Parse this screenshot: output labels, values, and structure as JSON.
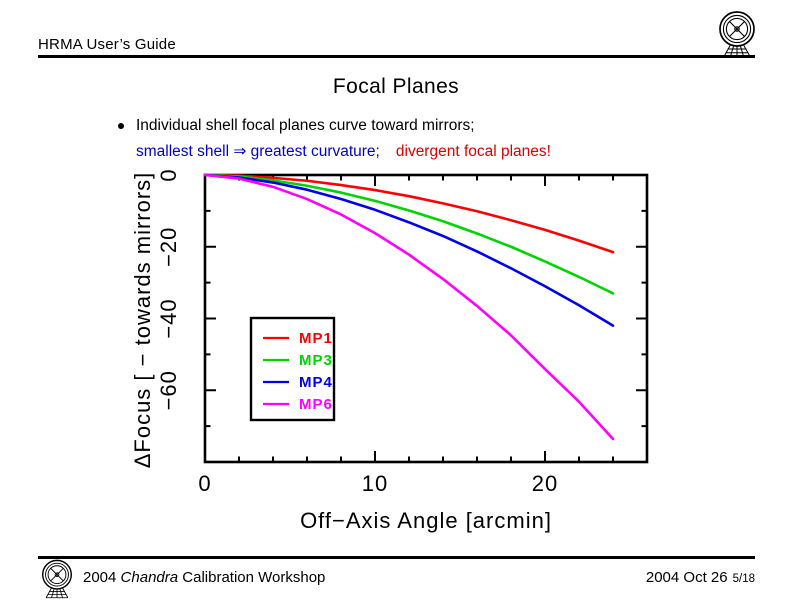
{
  "header": {
    "guide_title": "HRMA User’s Guide"
  },
  "title": "Focal Planes",
  "bullet": {
    "line1": "Individual shell focal planes curve toward mirrors;",
    "line2_blue": "smallest shell ⇒ greatest curvature;",
    "line2_red": "divergent focal planes!"
  },
  "footer": {
    "left_prefix": "2004",
    "left_italic": "Chandra",
    "left_suffix": "Calibration Workshop",
    "date": "2004 Oct 26",
    "page": "5/18"
  },
  "icons": {
    "header_logo": "chandra-emblem",
    "footer_logo": "chandra-emblem"
  },
  "text_colors": {
    "emphasis_blue": "#0000cc",
    "emphasis_red": "#dd0000"
  },
  "chart_data": {
    "type": "line",
    "title": "",
    "xlabel": "Off−Axis Angle [arcmin]",
    "ylabel": "ΔFocus [ − towards mirrors]",
    "xlim": [
      0,
      26
    ],
    "ylim": [
      -80,
      0
    ],
    "x_major_ticks": [
      0,
      10,
      20
    ],
    "x_minor_step": 2,
    "y_major_ticks": [
      0,
      -20,
      -40,
      -60
    ],
    "y_minor_step": 10,
    "grid": false,
    "legend_position": "inside-left-middle",
    "x": [
      0,
      2,
      4,
      6,
      8,
      10,
      12,
      14,
      16,
      18,
      20,
      22,
      24
    ],
    "series": [
      {
        "name": "MP1",
        "color": "#ff0000",
        "values": [
          0,
          -0.2,
          -0.8,
          -1.6,
          -2.8,
          -4.2,
          -5.9,
          -7.9,
          -10.1,
          -12.6,
          -15.3,
          -18.3,
          -21.5
        ]
      },
      {
        "name": "MP3",
        "color": "#00d400",
        "values": [
          0,
          -0.4,
          -1.5,
          -3.0,
          -4.9,
          -7.2,
          -9.9,
          -12.9,
          -16.3,
          -20.0,
          -24.1,
          -28.4,
          -33.0
        ]
      },
      {
        "name": "MP4",
        "color": "#0000ee",
        "values": [
          0,
          -0.7,
          -2.1,
          -4.1,
          -6.7,
          -9.7,
          -13.2,
          -17.0,
          -21.3,
          -26.0,
          -31.0,
          -36.3,
          -42.0
        ]
      },
      {
        "name": "MP6",
        "color": "#ff00ff",
        "values": [
          0,
          -1.0,
          -3.3,
          -6.7,
          -11.0,
          -16.2,
          -22.2,
          -29.0,
          -36.5,
          -44.7,
          -54.1,
          -63.2,
          -73.6
        ]
      }
    ]
  }
}
